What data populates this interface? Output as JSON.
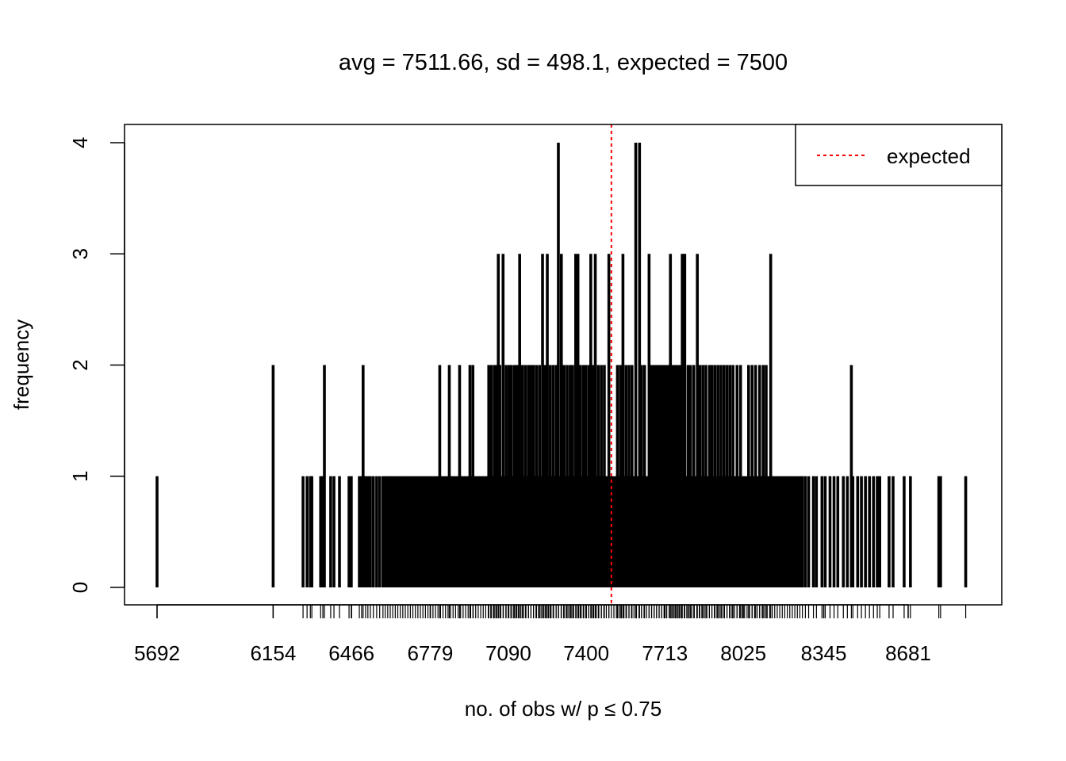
{
  "chart_data": {
    "type": "bar",
    "title": "avg = 7511.66, sd = 498.1, expected = 7500",
    "xlabel": "no. of obs w/ p ≤ 0.75",
    "ylabel": "frequency",
    "xlim": [
      5560,
      9040
    ],
    "ylim": [
      -0.15,
      4.15
    ],
    "xticks": [
      5692,
      6154,
      6466,
      6779,
      7090,
      7400,
      7713,
      8025,
      8345,
      8681
    ],
    "yticks": [
      0,
      1,
      2,
      3,
      4
    ],
    "expected": 7500,
    "expected_color": "#ff0000",
    "legend": {
      "label": "expected",
      "position": "top-right"
    },
    "freq1": [
      5692,
      6273,
      6289,
      6302,
      6308,
      6343,
      6352,
      6383,
      6396,
      6418,
      6456,
      6465,
      6497,
      6506,
      6522,
      6531,
      6541,
      6553,
      6566,
      6578,
      6591,
      6600,
      6610,
      6620,
      6630,
      6640,
      6650,
      6660,
      6670,
      6680,
      6690,
      6700,
      6710,
      6720,
      6730,
      6740,
      6750,
      6760,
      6770,
      6780,
      6790,
      6800,
      6810,
      6820,
      6830,
      6840,
      6850,
      6860,
      6870,
      6880,
      6890,
      6900,
      6910,
      6920,
      6930,
      6940,
      6950,
      6960,
      6970,
      6980,
      6990,
      7000,
      7010,
      7020,
      7030,
      7040,
      7050,
      7060,
      7070,
      7080,
      7090,
      7100,
      7110,
      7120,
      7130,
      7140,
      7150,
      7160,
      7170,
      7180,
      7190,
      7200,
      7210,
      7220,
      7230,
      7240,
      7250,
      7260,
      7270,
      7280,
      7290,
      7300,
      7310,
      7320,
      7330,
      7340,
      7350,
      7360,
      7370,
      7380,
      7390,
      7400,
      7410,
      7420,
      7430,
      7440,
      7450,
      7460,
      7470,
      7480,
      7490,
      7500,
      7510,
      7520,
      7530,
      7540,
      7550,
      7560,
      7570,
      7580,
      7590,
      7600,
      7610,
      7620,
      7630,
      7640,
      7650,
      7660,
      7670,
      7680,
      7690,
      7700,
      7710,
      7720,
      7730,
      7740,
      7750,
      7760,
      7770,
      7780,
      7790,
      7800,
      7810,
      7820,
      7830,
      7840,
      7850,
      7860,
      7870,
      7880,
      7890,
      7900,
      7910,
      7920,
      7930,
      7940,
      7950,
      7960,
      7970,
      7980,
      7990,
      8000,
      8010,
      8020,
      8030,
      8040,
      8050,
      8060,
      8070,
      8080,
      8090,
      8100,
      8110,
      8120,
      8130,
      8140,
      8150,
      8160,
      8170,
      8180,
      8190,
      8200,
      8210,
      8220,
      8230,
      8240,
      8250,
      8260,
      8272,
      8285,
      8304,
      8316,
      8338,
      8351,
      8370,
      8386,
      8401,
      8423,
      8439,
      8461,
      8480,
      8495,
      8511,
      8527,
      8543,
      8558,
      8568,
      8605,
      8621,
      8665,
      8690,
      8803,
      8810,
      8910
    ],
    "freq2": [
      6154,
      6358,
      6512,
      6817,
      6855,
      6896,
      6937,
      6949,
      7012,
      7022,
      7034,
      7044,
      7056,
      7081,
      7092,
      7102,
      7114,
      7124,
      7146,
      7158,
      7170,
      7180,
      7190,
      7202,
      7214,
      7236,
      7256,
      7268,
      7280,
      7312,
      7324,
      7336,
      7346,
      7376,
      7388,
      7398,
      7410,
      7426,
      7448,
      7460,
      7472,
      7524,
      7536,
      7558,
      7570,
      7582,
      7620,
      7632,
      7660,
      7670,
      7680,
      7690,
      7700,
      7710,
      7720,
      7730,
      7745,
      7755,
      7765,
      7775,
      7805,
      7815,
      7828,
      7852,
      7864,
      7876,
      7890,
      7900,
      7912,
      7924,
      7936,
      7948,
      7960,
      7972,
      7984,
      8000,
      8014,
      8046,
      8060,
      8074,
      8090,
      8104,
      8116,
      8455
    ],
    "freq3": [
      7050,
      7069,
      7135,
      7226,
      7245,
      7301,
      7358,
      7367,
      7418,
      7436,
      7490,
      7546,
      7650,
      7735,
      7782,
      7792,
      7842,
      8134
    ],
    "freq4": [
      7289,
      7597,
      7612
    ]
  }
}
